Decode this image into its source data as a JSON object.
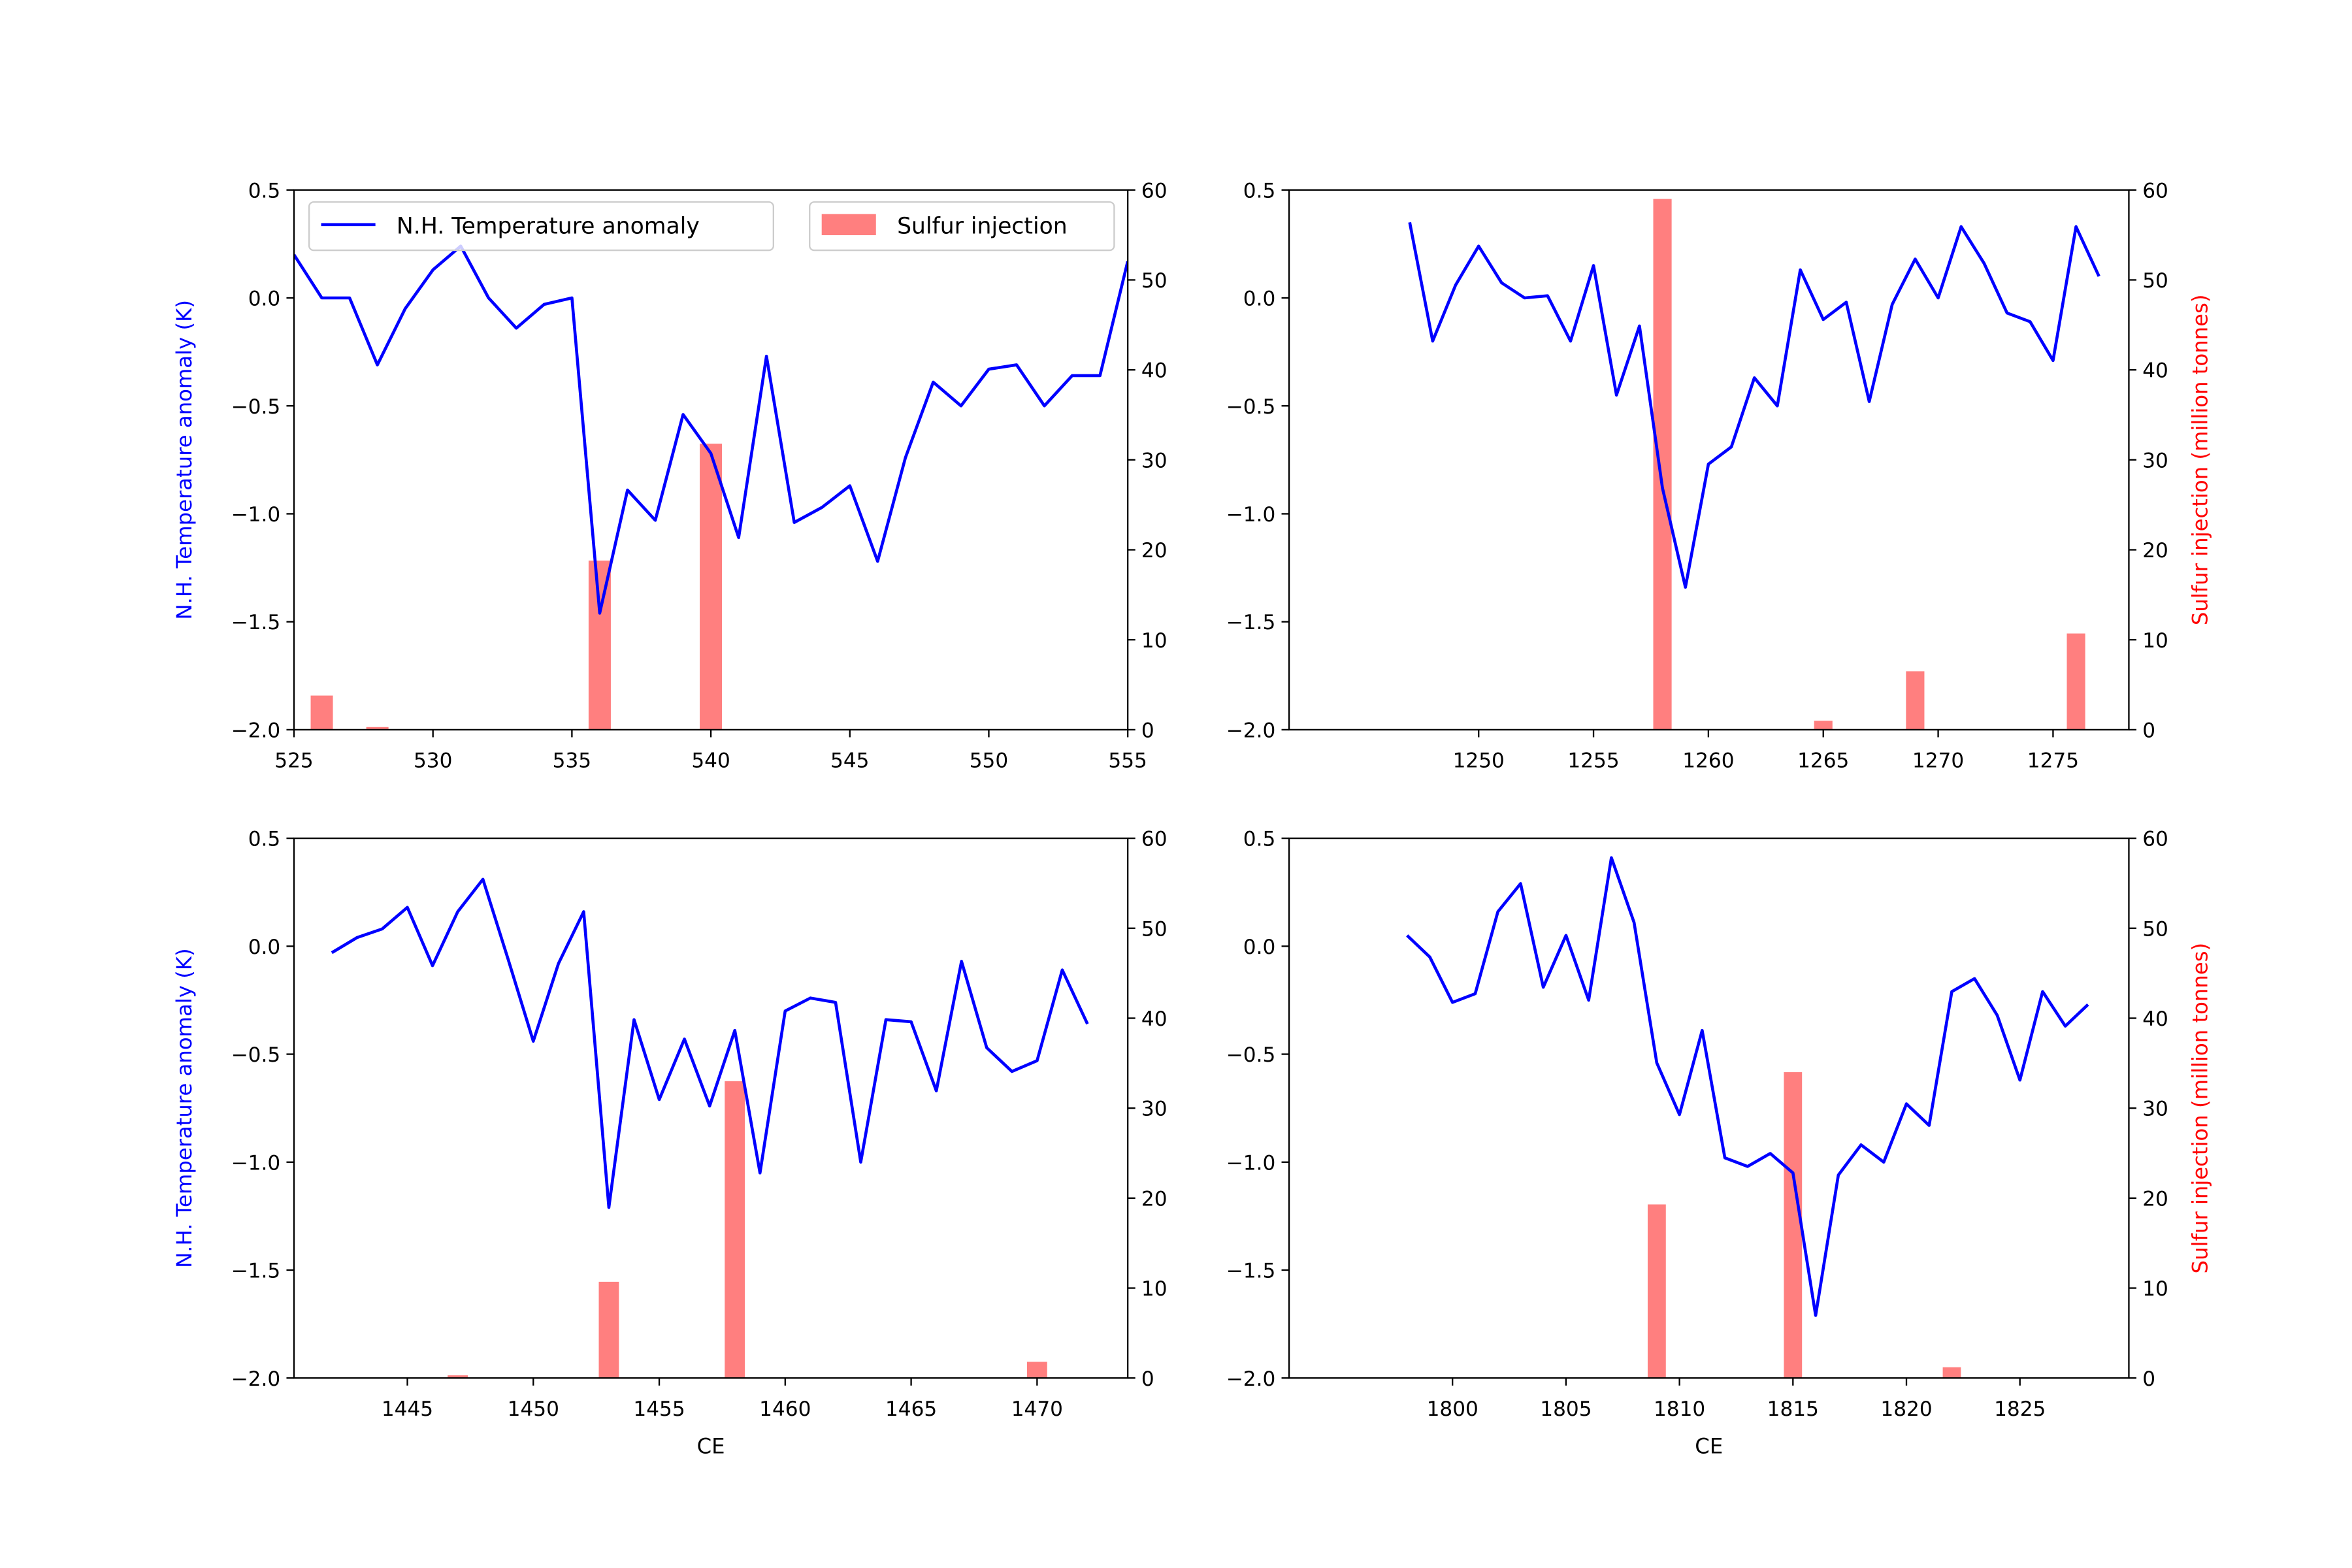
{
  "colors": {
    "line": "#0000ff",
    "bar": "#ff0000",
    "bar_alpha": 0.5,
    "left_label": "#0000ff",
    "right_label": "#ff0000"
  },
  "chart_data": [
    {
      "type": "bar+line",
      "xlim": [
        525,
        555
      ],
      "ylim_left": [
        -2.0,
        0.5
      ],
      "ylim_right": [
        0,
        60
      ],
      "xticks": [
        525,
        530,
        535,
        540,
        545,
        550,
        555
      ],
      "yticks_left": [
        "0.5",
        "0.0",
        "−0.5",
        "−1.0",
        "−1.5",
        "−2.0"
      ],
      "yticks_right": [
        "0",
        "10",
        "20",
        "30",
        "40",
        "50",
        "60"
      ],
      "ylabel_left": "N.H. Temperature anomaly (K)",
      "ylabel_right": "",
      "xlabel": "",
      "legend": {
        "placement": "top",
        "entries": [
          "N.H. Temperature anomaly",
          "Sulfur injection"
        ]
      },
      "line": {
        "name": "N.H. Temperature anomaly",
        "x": [
          525,
          526,
          527,
          528,
          529,
          530,
          531,
          532,
          533,
          534,
          535,
          536,
          537,
          538,
          539,
          540,
          541,
          542,
          543,
          544,
          545,
          546,
          547,
          548,
          549,
          550,
          551,
          552,
          553,
          554,
          555
        ],
        "y": [
          0.2,
          0.0,
          0.0,
          -0.31,
          -0.05,
          0.13,
          0.24,
          0.0,
          -0.14,
          -0.03,
          0.0,
          -1.46,
          -0.89,
          -1.03,
          -0.54,
          -0.72,
          -1.11,
          -0.27,
          -1.04,
          -0.97,
          -0.87,
          -1.22,
          -0.74,
          -0.39,
          -0.5,
          -0.33,
          -0.31,
          -0.5,
          -0.36,
          -0.36,
          0.17
        ]
      },
      "bars": {
        "name": "Sulfur injection",
        "x": [
          526,
          528,
          536,
          540
        ],
        "y": [
          3.8,
          0.3,
          18.8,
          31.8
        ]
      }
    },
    {
      "type": "bar+line",
      "xlim": [
        1241.75,
        1278.3
      ],
      "ylim_left": [
        -2.0,
        0.5
      ],
      "ylim_right": [
        0,
        60
      ],
      "xticks": [
        1250,
        1255,
        1260,
        1265,
        1270,
        1275
      ],
      "yticks_left": [
        "0.5",
        "0.0",
        "−0.5",
        "−1.0",
        "−1.5",
        "−2.0"
      ],
      "yticks_right": [
        "0",
        "10",
        "20",
        "30",
        "40",
        "50",
        "60"
      ],
      "ylabel_left": "",
      "ylabel_right": "Sulfur injection (million tonnes)",
      "xlabel": "",
      "line": {
        "x": [
          1247,
          1248,
          1249,
          1250,
          1251,
          1252,
          1253,
          1254,
          1255,
          1256,
          1257,
          1258,
          1259,
          1260,
          1261,
          1262,
          1263,
          1264,
          1265,
          1266,
          1267,
          1268,
          1269,
          1270,
          1271,
          1272,
          1273,
          1274,
          1275,
          1276,
          1277
        ],
        "y": [
          0.35,
          -0.2,
          0.06,
          0.24,
          0.07,
          0.0,
          0.01,
          -0.2,
          0.15,
          -0.45,
          -0.13,
          -0.88,
          -1.34,
          -0.77,
          -0.69,
          -0.37,
          -0.5,
          0.13,
          -0.1,
          -0.02,
          -0.48,
          -0.03,
          0.18,
          0.0,
          0.33,
          0.16,
          -0.07,
          -0.11,
          -0.29,
          0.33,
          0.1
        ]
      },
      "bars": {
        "x": [
          1258,
          1265,
          1269,
          1276
        ],
        "y": [
          59,
          1.0,
          6.5,
          10.7
        ]
      }
    },
    {
      "type": "bar+line",
      "xlim": [
        1440.5,
        1473.6
      ],
      "ylim_left": [
        -2.0,
        0.5
      ],
      "ylim_right": [
        0,
        60
      ],
      "xticks": [
        1445,
        1450,
        1455,
        1460,
        1465,
        1470
      ],
      "yticks_left": [
        "0.5",
        "0.0",
        "−0.5",
        "−1.0",
        "−1.5",
        "−2.0"
      ],
      "yticks_right": [
        "0",
        "10",
        "20",
        "30",
        "40",
        "50",
        "60"
      ],
      "ylabel_left": "N.H. Temperature anomaly (K)",
      "ylabel_right": "",
      "xlabel": "CE",
      "line": {
        "x": [
          1442,
          1443,
          1444,
          1445,
          1446,
          1447,
          1448,
          1449,
          1450,
          1451,
          1452,
          1453,
          1454,
          1455,
          1456,
          1457,
          1458,
          1459,
          1460,
          1461,
          1462,
          1463,
          1464,
          1465,
          1466,
          1467,
          1468,
          1469,
          1470,
          1471,
          1472
        ],
        "y": [
          -0.03,
          0.04,
          0.08,
          0.18,
          -0.09,
          0.16,
          0.31,
          -0.06,
          -0.44,
          -0.08,
          0.16,
          -1.21,
          -0.34,
          -0.71,
          -0.43,
          -0.74,
          -0.39,
          -1.05,
          -0.3,
          -0.24,
          -0.26,
          -1.0,
          -0.34,
          -0.35,
          -0.67,
          -0.07,
          -0.47,
          -0.58,
          -0.53,
          -0.11,
          -0.36
        ]
      },
      "bars": {
        "x": [
          1447,
          1453,
          1458,
          1470
        ],
        "y": [
          0.3,
          10.7,
          33.0,
          1.8
        ]
      }
    },
    {
      "type": "bar+line",
      "xlim": [
        1792.8,
        1829.8
      ],
      "ylim_left": [
        -2.0,
        0.5
      ],
      "ylim_right": [
        0,
        60
      ],
      "xticks": [
        1800,
        1805,
        1810,
        1815,
        1820,
        1825
      ],
      "yticks_left": [
        "0.5",
        "0.0",
        "−0.5",
        "−1.0",
        "−1.5",
        "−2.0"
      ],
      "yticks_right": [
        "0",
        "10",
        "20",
        "30",
        "40",
        "50",
        "60"
      ],
      "ylabel_left": "",
      "ylabel_right": "Sulfur injection (million tonnes)",
      "xlabel": "CE",
      "line": {
        "x": [
          1798,
          1799,
          1800,
          1801,
          1802,
          1803,
          1804,
          1805,
          1806,
          1807,
          1808,
          1809,
          1810,
          1811,
          1812,
          1813,
          1814,
          1815,
          1816,
          1817,
          1818,
          1819,
          1820,
          1821,
          1822,
          1823,
          1824,
          1825,
          1826,
          1827,
          1828
        ],
        "y": [
          0.05,
          -0.05,
          -0.26,
          -0.22,
          0.16,
          0.29,
          -0.19,
          0.05,
          -0.25,
          0.41,
          0.11,
          -0.54,
          -0.78,
          -0.39,
          -0.98,
          -1.02,
          -0.96,
          -1.05,
          -1.71,
          -1.06,
          -0.92,
          -1.0,
          -0.73,
          -0.83,
          -0.21,
          -0.15,
          -0.32,
          -0.62,
          -0.21,
          -0.37,
          -0.27
        ]
      },
      "bars": {
        "x": [
          1809,
          1815,
          1822
        ],
        "y": [
          19.3,
          34.0,
          1.2
        ]
      }
    }
  ]
}
